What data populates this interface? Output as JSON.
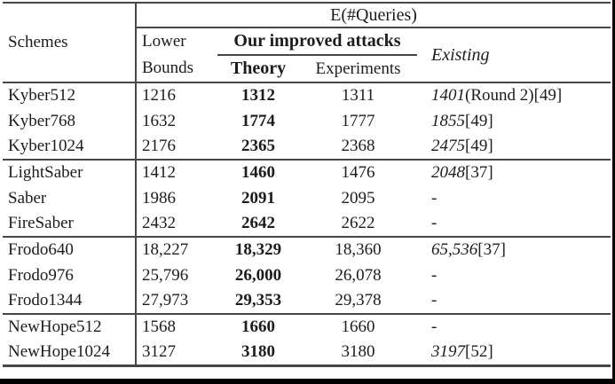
{
  "frame": {
    "border_color": "#000000",
    "rule_color": "#474747"
  },
  "table": {
    "header": {
      "schemes": "Schemes",
      "equeries": "E(#Queries)",
      "lower_line1": "Lower",
      "lower_line2": "Bounds",
      "improved": "Our improved attacks",
      "theory": "Theory",
      "experiments": "Experiments",
      "existing": "Existing"
    },
    "rows": [
      {
        "scheme": "Kyber512",
        "lower": "1216",
        "theory": "1312",
        "experiments": "1311",
        "existing_num": "1401",
        "existing_suffix": "(Round 2)[49]",
        "new_group": false
      },
      {
        "scheme": "Kyber768",
        "lower": "1632",
        "theory": "1774",
        "experiments": "1777",
        "existing_num": "1855",
        "existing_suffix": "[49]",
        "new_group": false
      },
      {
        "scheme": "Kyber1024",
        "lower": "2176",
        "theory": "2365",
        "experiments": "2368",
        "existing_num": "2475",
        "existing_suffix": "[49]",
        "new_group": false
      },
      {
        "scheme": "LightSaber",
        "lower": "1412",
        "theory": "1460",
        "experiments": "1476",
        "existing_num": "2048",
        "existing_suffix": "[37]",
        "new_group": true
      },
      {
        "scheme": "Saber",
        "lower": "1986",
        "theory": "2091",
        "experiments": "2095",
        "existing_num": "-",
        "existing_suffix": "",
        "new_group": false
      },
      {
        "scheme": "FireSaber",
        "lower": "2432",
        "theory": "2642",
        "experiments": "2622",
        "existing_num": "-",
        "existing_suffix": "",
        "new_group": false
      },
      {
        "scheme": "Frodo640",
        "lower": "18,227",
        "theory": "18,329",
        "experiments": "18,360",
        "existing_num": "65,536",
        "existing_suffix": "[37]",
        "new_group": true
      },
      {
        "scheme": "Frodo976",
        "lower": "25,796",
        "theory": "26,000",
        "experiments": "26,078",
        "existing_num": "-",
        "existing_suffix": "",
        "new_group": false
      },
      {
        "scheme": "Frodo1344",
        "lower": "27,973",
        "theory": "29,353",
        "experiments": "29,378",
        "existing_num": "-",
        "existing_suffix": "",
        "new_group": false
      },
      {
        "scheme": "NewHope512",
        "lower": "1568",
        "theory": "1660",
        "experiments": "1660",
        "existing_num": "-",
        "existing_suffix": "",
        "new_group": true
      },
      {
        "scheme": "NewHope1024",
        "lower": "3127",
        "theory": "3180",
        "experiments": "3180",
        "existing_num": "3197",
        "existing_suffix": "[52]",
        "new_group": false
      }
    ]
  }
}
